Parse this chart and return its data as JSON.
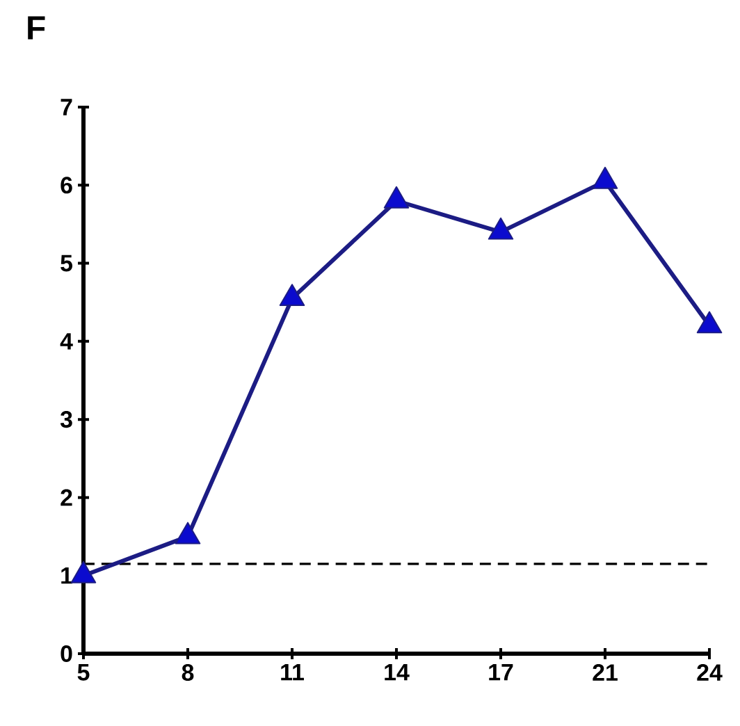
{
  "chart_data": {
    "type": "line",
    "title": "F",
    "categories": [
      "5",
      "8",
      "11",
      "14",
      "17",
      "21",
      "24"
    ],
    "series": [
      {
        "color": "#1c1c84",
        "values": [
          1.0,
          1.5,
          4.55,
          5.8,
          5.4,
          6.05,
          4.2
        ]
      }
    ],
    "ylim": [
      0,
      7
    ],
    "yticks": [
      0,
      1,
      2,
      3,
      4,
      5,
      6,
      7
    ],
    "marker": "triangle",
    "line_style": "solid",
    "grid": false,
    "ref_lines": [
      {
        "axis": "y",
        "value": 1.15,
        "color": "#000000",
        "line_style": "dashed"
      }
    ]
  }
}
